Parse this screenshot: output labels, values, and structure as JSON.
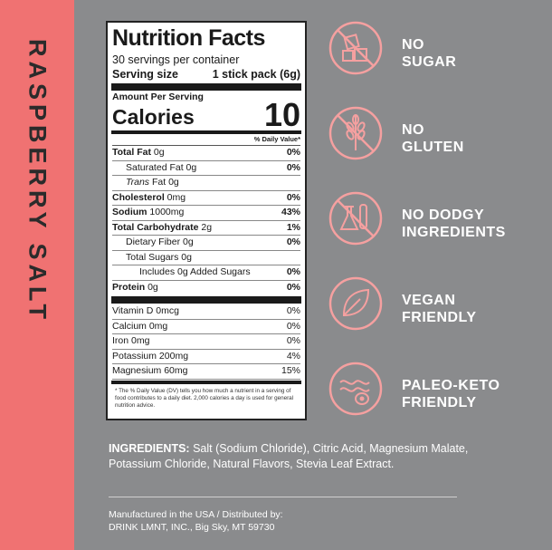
{
  "side_title": "RASPBERRY SALT",
  "nutrition": {
    "title": "Nutrition Facts",
    "servings": "30 servings per container",
    "serving_size_label": "Serving size",
    "serving_size_value": "1 stick pack (6g)",
    "amount_per_serving": "Amount Per Serving",
    "calories_label": "Calories",
    "calories_value": "10",
    "daily_value_header": "% Daily Value*",
    "rows": [
      {
        "label_bold": "Total Fat",
        "label": " 0g",
        "pct": "0%"
      },
      {
        "label": "Saturated Fat 0g",
        "pct": "0%"
      },
      {
        "label_italic": "Trans",
        "label": " Fat 0g",
        "pct": ""
      },
      {
        "label_bold": "Cholesterol",
        "label": " 0mg",
        "pct": "0%"
      },
      {
        "label_bold": "Sodium",
        "label": " 1000mg",
        "pct": "43%"
      },
      {
        "label_bold": "Total Carbohydrate",
        "label": " 2g",
        "pct": "1%"
      },
      {
        "label": "Dietary Fiber 0g",
        "pct": "0%"
      },
      {
        "label": "Total Sugars 0g",
        "pct": ""
      },
      {
        "label": "Includes 0g Added Sugars",
        "pct": "0%"
      },
      {
        "label_bold": "Protein",
        "label": " 0g",
        "pct": "0%"
      }
    ],
    "vitamins": [
      {
        "label": "Vitamin D 0mcg",
        "pct": "0%"
      },
      {
        "label": "Calcium 0mg",
        "pct": "0%"
      },
      {
        "label": "Iron 0mg",
        "pct": "0%"
      },
      {
        "label": "Potassium 200mg",
        "pct": "4%"
      },
      {
        "label": "Magnesium 60mg",
        "pct": "15%"
      }
    ],
    "footnote": "* The % Daily Value (DV) tells you how much a nutrient in a serving of food contributes to a daily diet. 2,000 calories a day is used for general nutrition advice."
  },
  "claims": [
    {
      "line1": "NO",
      "line2": "SUGAR",
      "icon": "no-sugar-icon"
    },
    {
      "line1": "NO",
      "line2": "GLUTEN",
      "icon": "no-gluten-icon"
    },
    {
      "line1": "NO DODGY",
      "line2": "INGREDIENTS",
      "icon": "no-dodgy-ingredients-icon"
    },
    {
      "line1": "VEGAN",
      "line2": "FRIENDLY",
      "icon": "vegan-leaf-icon"
    },
    {
      "line1": "PALEO-KETO",
      "line2": "FRIENDLY",
      "icon": "paleo-keto-icon"
    }
  ],
  "ingredients": {
    "label": "INGREDIENTS:",
    "text": " Salt (Sodium Chloride), Citric Acid, Magnesium Malate, Potassium Chloride, Natural Flavors, Stevia Leaf Extract."
  },
  "manufacturer": {
    "line1": "Manufactured in the USA / Distributed by:",
    "line2": "DRINK LMNT, INC., Big Sky, MT 59730"
  },
  "colors": {
    "accent": "#f07272",
    "background": "#8a8b8d",
    "icon_stroke": "#f5a0a0"
  }
}
